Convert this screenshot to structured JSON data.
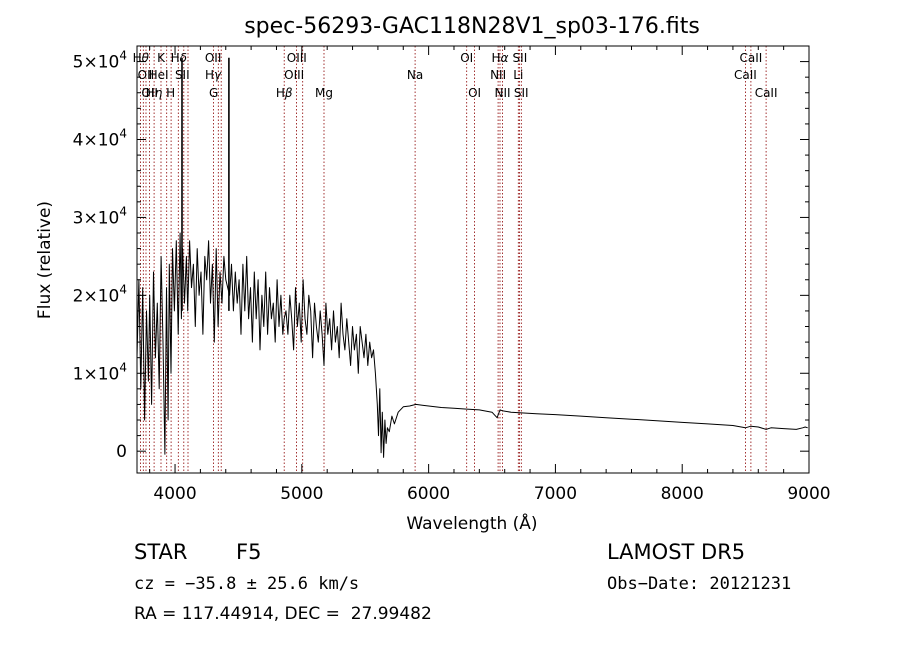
{
  "chart_data": {
    "type": "line",
    "title": "spec-56293-GAC118N28V1_sp03-176.fits",
    "xlabel": "Wavelength (Å)",
    "ylabel": "Flux (relative)",
    "xlim": [
      3700,
      9000
    ],
    "ylim": [
      -2800,
      52000
    ],
    "grid": false,
    "x_ticks": [
      4000,
      5000,
      6000,
      7000,
      8000,
      9000
    ],
    "x_tick_labels": [
      "4000",
      "5000",
      "6000",
      "7000",
      "8000",
      "9000"
    ],
    "y_ticks": [
      0,
      10000,
      20000,
      30000,
      40000,
      50000
    ],
    "y_tick_labels": [
      {
        "mantissa": "0",
        "exp": ""
      },
      {
        "mantissa": "1×10",
        "exp": "4"
      },
      {
        "mantissa": "2×10",
        "exp": "4"
      },
      {
        "mantissa": "3×10",
        "exp": "4"
      },
      {
        "mantissa": "4×10",
        "exp": "4"
      },
      {
        "mantissa": "5×10",
        "exp": "4"
      }
    ],
    "series": [
      {
        "x": [
          3700,
          3715,
          3730,
          3745,
          3760,
          3775,
          3790,
          3800,
          3815,
          3830,
          3845,
          3860,
          3875,
          3890,
          3905,
          3920,
          3933,
          3945,
          3955,
          3968,
          3980,
          3995,
          4010,
          4025,
          4040,
          4050,
          4060,
          4075,
          4090,
          4100,
          4115,
          4130,
          4145,
          4160,
          4175,
          4190,
          4205,
          4220,
          4235,
          4250,
          4265,
          4280,
          4295,
          4310,
          4325,
          4340,
          4355,
          4370,
          4385,
          4400,
          4415,
          4430,
          4445,
          4460,
          4475,
          4490,
          4505,
          4520,
          4535,
          4550,
          4565,
          4580,
          4595,
          4610,
          4625,
          4640,
          4655,
          4670,
          4685,
          4700,
          4715,
          4730,
          4745,
          4760,
          4775,
          4790,
          4805,
          4820,
          4835,
          4850,
          4861,
          4875,
          4890,
          4905,
          4920,
          4935,
          4950,
          4965,
          4980,
          4995,
          5010,
          5025,
          5040,
          5055,
          5070,
          5085,
          5100,
          5115,
          5130,
          5145,
          5160,
          5175,
          5190,
          5205,
          5220,
          5235,
          5250,
          5265,
          5280,
          5295,
          5310,
          5325,
          5340,
          5355,
          5370,
          5385,
          5400,
          5415,
          5430,
          5445,
          5460,
          5475,
          5490,
          5505,
          5520,
          5535,
          5550,
          5565,
          5580,
          5595,
          5605,
          5615,
          5625,
          5635,
          5645,
          5655,
          5665,
          5675,
          5690,
          5710,
          5730,
          5760,
          5800,
          5850,
          5900,
          5950,
          6000,
          6100,
          6200,
          6300,
          6400,
          6500,
          6540,
          6563,
          6580,
          6650,
          6750,
          6850,
          7000,
          7200,
          7400,
          7600,
          7800,
          8000,
          8200,
          8400,
          8498,
          8542,
          8600,
          8662,
          8700,
          8800,
          8900,
          8950,
          8970,
          8990
        ],
        "y": [
          12000,
          22000,
          8000,
          21000,
          4000,
          18000,
          9000,
          20000,
          6000,
          23000,
          12000,
          19000,
          8000,
          25000,
          14000,
          -400,
          21000,
          4000,
          24000,
          10000,
          26000,
          18000,
          27000,
          15000,
          28000,
          17000,
          26000,
          19000,
          25000,
          18000,
          27000,
          21000,
          24000,
          16000,
          26000,
          20000,
          23000,
          15000,
          25000,
          22000,
          27000,
          19000,
          24000,
          14000,
          26000,
          16000,
          23000,
          19000,
          25000,
          22000,
          21000,
          20000,
          24000,
          18000,
          23000,
          19000,
          22000,
          15000,
          24000,
          18000,
          25000,
          17000,
          21000,
          14000,
          23000,
          17000,
          22000,
          13000,
          20000,
          16000,
          23000,
          15000,
          21000,
          17000,
          19000,
          14000,
          22000,
          16000,
          20000,
          15000,
          17000,
          18000,
          15000,
          20000,
          17000,
          13000,
          21000,
          16000,
          19000,
          14000,
          22000,
          17000,
          15000,
          20000,
          18000,
          12000,
          19000,
          16000,
          14000,
          18000,
          15000,
          11000,
          19000,
          15000,
          17000,
          13000,
          18000,
          14000,
          16000,
          12000,
          19000,
          15000,
          13000,
          17000,
          14000,
          11000,
          16000,
          13000,
          15000,
          10000,
          16000,
          14000,
          12000,
          15000,
          11000,
          14000,
          12000,
          13000,
          10000,
          6000,
          2000,
          8000,
          -200,
          5000,
          -800,
          4000,
          1000,
          3000,
          2500,
          4500,
          3500,
          5000,
          5700,
          5800,
          6000,
          5900,
          5800,
          5600,
          5500,
          5400,
          5300,
          5000,
          4300,
          5300,
          5200,
          5000,
          4900,
          4800,
          4700,
          4500,
          4300,
          4100,
          3900,
          3700,
          3500,
          3300,
          3000,
          3200,
          3100,
          2800,
          3000,
          2900,
          2800,
          3000,
          3100,
          3000
        ]
      }
    ],
    "spikes": [
      {
        "x": 4055,
        "y": 50500
      },
      {
        "x": 4425,
        "y": 50500
      }
    ],
    "line_labels": [
      {
        "x": 3730,
        "row": 0,
        "parts": [
          [
            "H",
            ""
          ],
          [
            "θ",
            "greek"
          ]
        ]
      },
      {
        "x": 3770,
        "row": 1,
        "parts": [
          [
            "OII",
            ""
          ]
        ]
      },
      {
        "x": 3800,
        "row": 2,
        "parts": [
          [
            "OII",
            ""
          ]
        ]
      },
      {
        "x": 3835,
        "row": 2,
        "parts": [
          [
            "H",
            ""
          ],
          [
            "η",
            "greek"
          ]
        ]
      },
      {
        "x": 3889,
        "row": 0,
        "parts": [
          [
            "K",
            ""
          ]
        ]
      },
      {
        "x": 3870,
        "row": 1,
        "parts": [
          [
            "HeI",
            ""
          ]
        ]
      },
      {
        "x": 3965,
        "row": 2,
        "parts": [
          [
            "H",
            ""
          ]
        ]
      },
      {
        "x": 4030,
        "row": 0,
        "parts": [
          [
            "H",
            ""
          ],
          [
            "δ",
            "greek"
          ]
        ]
      },
      {
        "x": 4057,
        "row": 1,
        "parts": [
          [
            "SII",
            ""
          ]
        ]
      },
      {
        "x": 4300,
        "row": 0,
        "parts": [
          [
            "OII",
            ""
          ]
        ]
      },
      {
        "x": 4300,
        "row": 1,
        "parts": [
          [
            "H",
            ""
          ],
          [
            "γ",
            "greek"
          ]
        ]
      },
      {
        "x": 4304,
        "row": 2,
        "parts": [
          [
            "G",
            ""
          ]
        ]
      },
      {
        "x": 4960,
        "row": 0,
        "parts": [
          [
            "OIII",
            ""
          ]
        ]
      },
      {
        "x": 4940,
        "row": 1,
        "parts": [
          [
            "OIII",
            ""
          ]
        ]
      },
      {
        "x": 4861,
        "row": 2,
        "parts": [
          [
            "H",
            ""
          ],
          [
            "β",
            "greek"
          ]
        ]
      },
      {
        "x": 5175,
        "row": 2,
        "parts": [
          [
            "Mg",
            ""
          ]
        ]
      },
      {
        "x": 5893,
        "row": 1,
        "parts": [
          [
            "Na",
            ""
          ]
        ]
      },
      {
        "x": 6300,
        "row": 0,
        "parts": [
          [
            "OI",
            ""
          ]
        ]
      },
      {
        "x": 6363,
        "row": 2,
        "parts": [
          [
            "OI",
            ""
          ]
        ]
      },
      {
        "x": 6563,
        "row": 0,
        "parts": [
          [
            "H",
            ""
          ],
          [
            "α",
            "greek"
          ]
        ]
      },
      {
        "x": 6548,
        "row": 1,
        "parts": [
          [
            "NII",
            ""
          ]
        ]
      },
      {
        "x": 6583,
        "row": 2,
        "parts": [
          [
            "NII",
            ""
          ]
        ]
      },
      {
        "x": 6720,
        "row": 0,
        "parts": [
          [
            "SII",
            ""
          ]
        ]
      },
      {
        "x": 6707,
        "row": 1,
        "parts": [
          [
            "Li",
            ""
          ]
        ]
      },
      {
        "x": 6730,
        "row": 2,
        "parts": [
          [
            "SII",
            ""
          ]
        ]
      },
      {
        "x": 8542,
        "row": 0,
        "parts": [
          [
            "CaII",
            ""
          ]
        ]
      },
      {
        "x": 8498,
        "row": 1,
        "parts": [
          [
            "CaII",
            ""
          ]
        ]
      },
      {
        "x": 8662,
        "row": 2,
        "parts": [
          [
            "CaII",
            ""
          ]
        ]
      }
    ],
    "line_markers": [
      3727,
      3750,
      3771,
      3798,
      3835,
      3889,
      3934,
      3969,
      4026,
      4069,
      4102,
      4304,
      4341,
      4364,
      4861,
      4959,
      5007,
      5175,
      5893,
      6300,
      6363,
      6548,
      6563,
      6583,
      6707,
      6716,
      6731,
      8498,
      8542,
      8662
    ],
    "marker_color": "#8b0000"
  },
  "info": {
    "object_class": "STAR",
    "subclass": "F5",
    "survey": "LAMOST DR5",
    "cz": "cz = −35.8 ± 25.6 km/s",
    "obs_date": "Obs−Date: 20121231",
    "coords": "RA = 117.44914, DEC =  27.99482"
  }
}
